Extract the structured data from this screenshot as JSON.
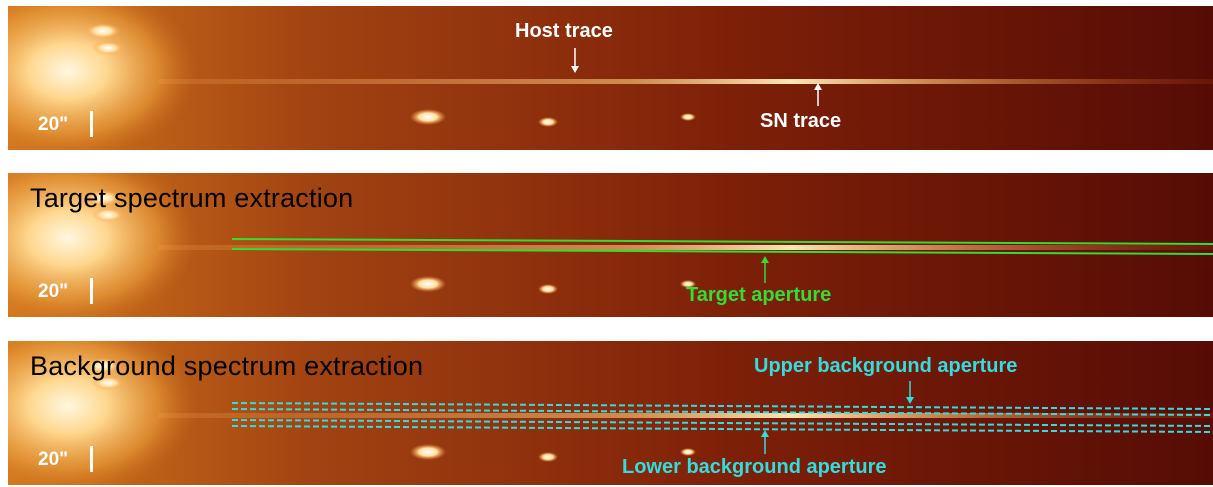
{
  "panels": [
    {
      "scale_label": "20\"",
      "labels": {
        "host": "Host trace",
        "sn": "SN trace"
      }
    },
    {
      "title": "Target spectrum extraction",
      "scale_label": "20\"",
      "labels": {
        "target": "Target aperture"
      },
      "aperture_color": "#33dd33"
    },
    {
      "title": "Background spectrum extraction",
      "scale_label": "20\"",
      "labels": {
        "upper": "Upper background aperture",
        "lower": "Lower background aperture"
      },
      "aperture_color": "#33dddd"
    }
  ],
  "colors": {
    "bg_dark": "#5a0d06",
    "bg_mid": "#9a3410",
    "glow": "#fff0c0",
    "label_white": "#ffffff"
  }
}
